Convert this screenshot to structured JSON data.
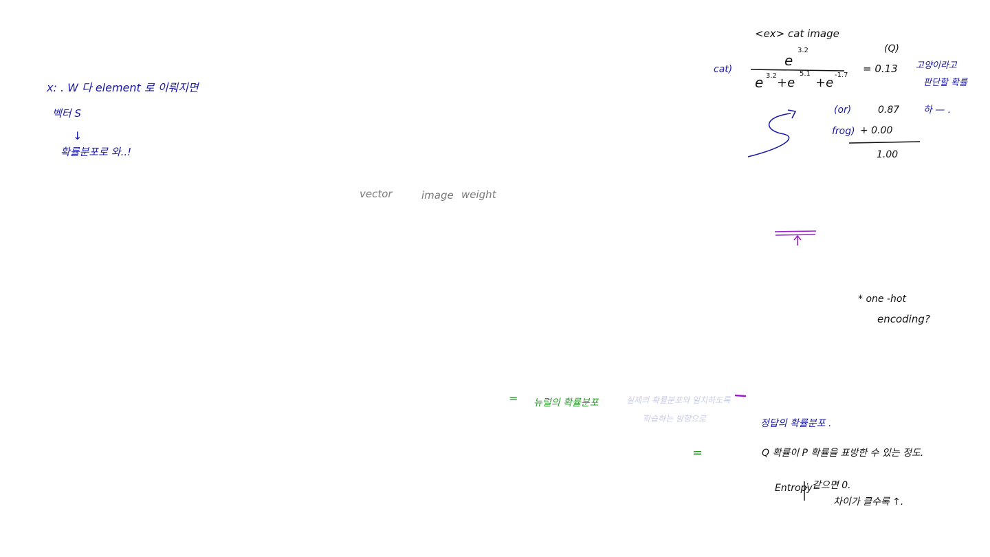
{
  "left_notes": {
    "line1": "x: . W 다 element 로 이뤄지면",
    "line2": "벡터 S",
    "arrow": "↓",
    "line3": "확률분포로 와..!"
  },
  "center_labels": {
    "vector": "vector",
    "image": "image",
    "weight": "weight"
  },
  "example": {
    "title": "<ex> cat image",
    "q_label": "(Q)",
    "cat_label": "cat)",
    "numerator": "e",
    "num_exp": "3.2",
    "denominator": "e",
    "den_exp1": "3.2",
    "den_exp2": "5.1",
    "den_exp3": "-1.7",
    "den_plus": "+e",
    "den_plus2": "+e",
    "result": "= 0.13",
    "side_note_1": "고양이라고",
    "side_note_2": "판단할 확률",
    "car_label": "(or)",
    "car_value": "0.87",
    "car_suffix": "하 — .",
    "frog_label": "frog)",
    "frog_value": "+ 0.00",
    "sum": "1.00"
  },
  "one_hot": {
    "line1": "* one -hot",
    "line2": "encoding?"
  },
  "bottom_notes": {
    "eq1": "=",
    "green_text": "뉴럴의 확률분포",
    "faded_1": "실제의 확률분포와 일치하도록",
    "faded_2": "학습하는 방향으로",
    "eq2": "=",
    "line_a": "정답의 확률분포 .",
    "line_b": "Q 확률이 P 확률을 표방한 수 있는 정도.",
    "entropy": "Entropy",
    "entropy_a": ": 같으면 0.",
    "entropy_b": "차이가 클수록 ↑."
  }
}
